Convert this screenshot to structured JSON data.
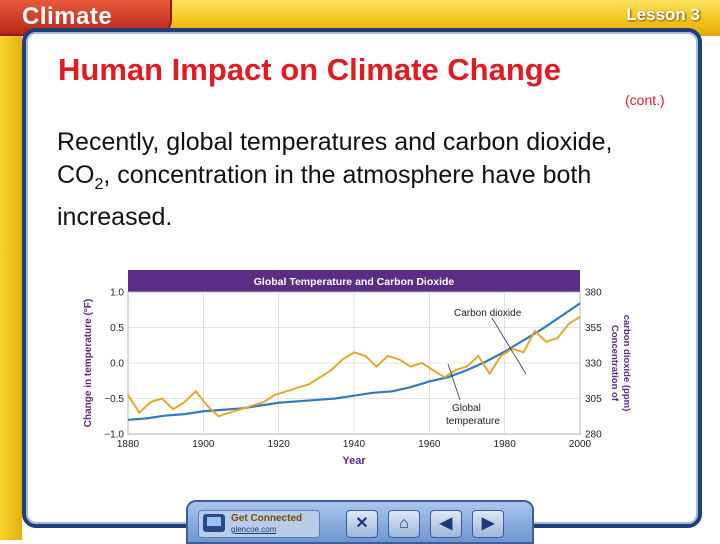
{
  "header": {
    "app_tab": "Climate",
    "lesson": "Lesson 3"
  },
  "slide": {
    "title": "Human Impact on Climate Change",
    "cont": "(cont.)",
    "body_pre": "Recently, global temperatures and carbon dioxide, CO",
    "body_sub": "2",
    "body_post": ", concentration in the atmosphere have both increased."
  },
  "chart_data": {
    "type": "line",
    "title": "Global Temperature and Carbon Dioxide",
    "xlabel": "Year",
    "ylabel": "Change in temperature (°F)",
    "y2label": "Concentration of carbon dioxide (ppm)",
    "xlim": [
      1880,
      2000
    ],
    "ylim": [
      -1.0,
      1.0
    ],
    "y2lim": [
      280,
      380
    ],
    "x_ticks": [
      "1880",
      "1900",
      "1920",
      "1940",
      "1960",
      "1980",
      "2000"
    ],
    "y_ticks": [
      "1.0",
      "0.5",
      "0.0",
      "−0.5",
      "−1.0"
    ],
    "y2_ticks": [
      "380",
      "355",
      "330",
      "305",
      "280"
    ],
    "annotations": [
      "Carbon dioxide",
      "Global temperature"
    ],
    "colors": {
      "temperature": "#e3a92a",
      "co2": "#2f7bc0",
      "banner": "#5b2c83"
    },
    "series": [
      {
        "axis": "right",
        "x": [
          1880,
          1885,
          1890,
          1895,
          1900,
          1905,
          1910,
          1915,
          1920,
          1925,
          1930,
          1935,
          1940,
          1945,
          1950,
          1955,
          1960,
          1965,
          1970,
          1975,
          1980,
          1985,
          1990,
          1995,
          2000
        ],
        "values": [
          290,
          291,
          293,
          294,
          296,
          297,
          298,
          300,
          302,
          303,
          304,
          305,
          307,
          309,
          310,
          313,
          317,
          320,
          325,
          331,
          338,
          346,
          354,
          363,
          372
        ]
      },
      {
        "axis": "left",
        "x": [
          1880,
          1883,
          1886,
          1889,
          1892,
          1895,
          1898,
          1901,
          1904,
          1907,
          1910,
          1913,
          1916,
          1919,
          1922,
          1925,
          1928,
          1931,
          1934,
          1937,
          1940,
          1943,
          1946,
          1949,
          1952,
          1955,
          1958,
          1961,
          1964,
          1967,
          1970,
          1973,
          1976,
          1979,
          1982,
          1985,
          1988,
          1991,
          1994,
          1997,
          2000
        ],
        "values": [
          -0.45,
          -0.7,
          -0.55,
          -0.5,
          -0.65,
          -0.55,
          -0.4,
          -0.6,
          -0.75,
          -0.7,
          -0.65,
          -0.6,
          -0.55,
          -0.45,
          -0.4,
          -0.35,
          -0.3,
          -0.2,
          -0.1,
          0.05,
          0.15,
          0.1,
          -0.05,
          0.1,
          0.05,
          -0.05,
          0.0,
          -0.1,
          -0.2,
          -0.1,
          -0.05,
          0.1,
          -0.15,
          0.1,
          0.2,
          0.15,
          0.45,
          0.3,
          0.35,
          0.55,
          0.65
        ]
      }
    ]
  },
  "footer": {
    "get_connected": "Get Connected",
    "site": "glencoe.com",
    "close": "✕",
    "home": "⌂",
    "prev": "◀",
    "next": "▶"
  }
}
